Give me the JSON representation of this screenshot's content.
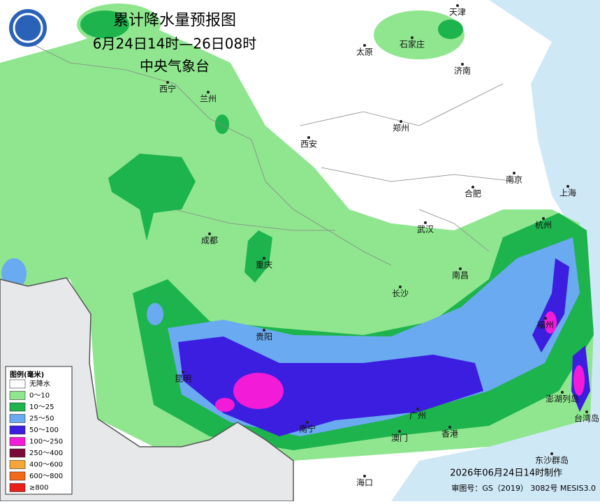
{
  "header": {
    "title": "累计降水量预报图",
    "subtitle": "6月24日14时—26日08时",
    "agency": "中央气象台"
  },
  "legend": {
    "title": "图例(毫米)",
    "items": [
      {
        "label": "无降水",
        "color": "#ffffff"
      },
      {
        "label": "0～10",
        "color": "#8fe68f"
      },
      {
        "label": "10～25",
        "color": "#1db34d"
      },
      {
        "label": "25～50",
        "color": "#6aaaf0"
      },
      {
        "label": "50～100",
        "color": "#3b1ee0"
      },
      {
        "label": "100～250",
        "color": "#f21bd8"
      },
      {
        "label": "250～400",
        "color": "#7a0a3a"
      },
      {
        "label": "400～600",
        "color": "#f4a636"
      },
      {
        "label": "600～800",
        "color": "#f26a1a"
      },
      {
        "label": "≥800",
        "color": "#e8201a"
      }
    ]
  },
  "cities": [
    "天津",
    "太原",
    "石家庄",
    "济南",
    "西宁",
    "兰州",
    "郑州",
    "西安",
    "南京",
    "合肥",
    "上海",
    "杭州",
    "成都",
    "武汉",
    "重庆",
    "南昌",
    "长沙",
    "福州",
    "贵阳",
    "昆明",
    "南宁",
    "广州",
    "澳门",
    "香港",
    "海口",
    "东沙群岛",
    "澎湖列岛",
    "台湾岛"
  ],
  "footer": {
    "made": "2026年06月24日14时制作",
    "approval": "审图号：GS（2019） 3082号 MESIS3.0"
  }
}
